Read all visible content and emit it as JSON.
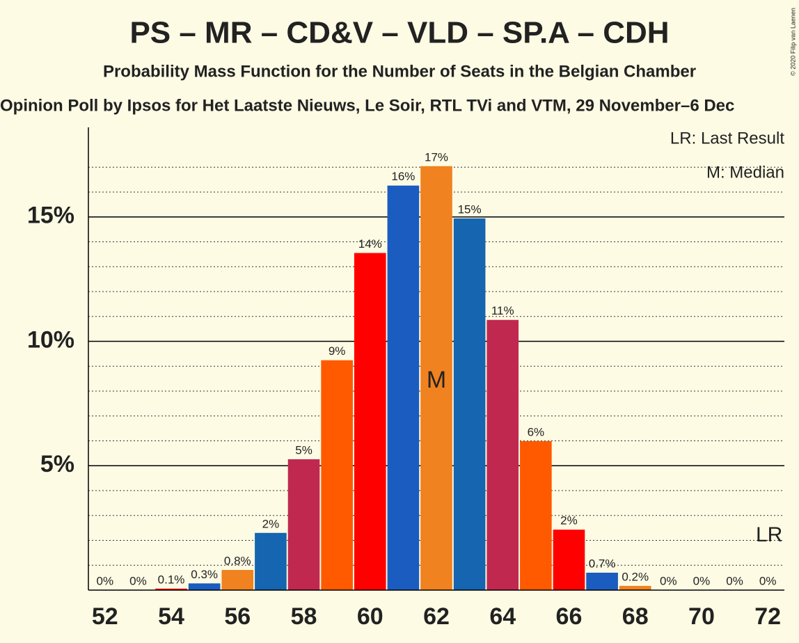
{
  "chart_data": {
    "type": "bar",
    "title": "PS – MR – CD&V – VLD – SP.A – CDH",
    "subtitle": "Probability Mass Function for the Number of Seats in the Belgian Chamber",
    "source": "Opinion Poll by Ipsos for Het Laatste Nieuws, Le Soir, RTL TVi and VTM, 29 November–6 Dec",
    "copyright": "© 2020 Filip van Laenen",
    "categories": [
      52,
      null,
      54,
      null,
      56,
      null,
      58,
      null,
      60,
      null,
      62,
      null,
      64,
      null,
      66,
      null,
      68,
      null,
      70,
      null,
      72
    ],
    "values": [
      0,
      0,
      0.06,
      0.27,
      0.81,
      2.3,
      5.26,
      9.24,
      13.55,
      16.26,
      17.04,
      14.94,
      10.86,
      5.99,
      2.43,
      0.7,
      0.17,
      0,
      0,
      0,
      0
    ],
    "value_labels": [
      "0%",
      "0%",
      "0.1%",
      "0.3%",
      "0.8%",
      "2%",
      "5%",
      "9%",
      "14%",
      "16%",
      "17%",
      "15%",
      "11%",
      "6%",
      "2%",
      "0.7%",
      "0.2%",
      "0%",
      "0%",
      "0%",
      "0%"
    ],
    "colors": [
      "#c0284f",
      "#ff5a00",
      "#ff0000",
      "#1a5cc0",
      "#f0821f",
      "#1565b0",
      "#c0284f",
      "#ff5a00",
      "#ff0000",
      "#1a5cc0",
      "#f0821f",
      "#1565b0",
      "#c0284f",
      "#ff5a00",
      "#ff0000",
      "#1a5cc0",
      "#f0821f",
      "#1565b0",
      "#c0284f",
      "#ff5a00",
      "#ff0000"
    ],
    "ylim": [
      0,
      18.6
    ],
    "yticks": [
      {
        "value": 5,
        "label": "5%"
      },
      {
        "value": 10,
        "label": "10%"
      },
      {
        "value": 15,
        "label": "15%"
      }
    ],
    "minor_yticks": [
      1,
      2,
      3,
      4,
      6,
      7,
      8,
      9,
      11,
      12,
      13,
      14,
      16,
      17
    ],
    "grid": true,
    "median_index": 10,
    "median_marker": "M",
    "last_result_index": 20,
    "last_result_marker": "LR",
    "legend": [
      "LR: Last Result",
      "M: Median"
    ]
  }
}
